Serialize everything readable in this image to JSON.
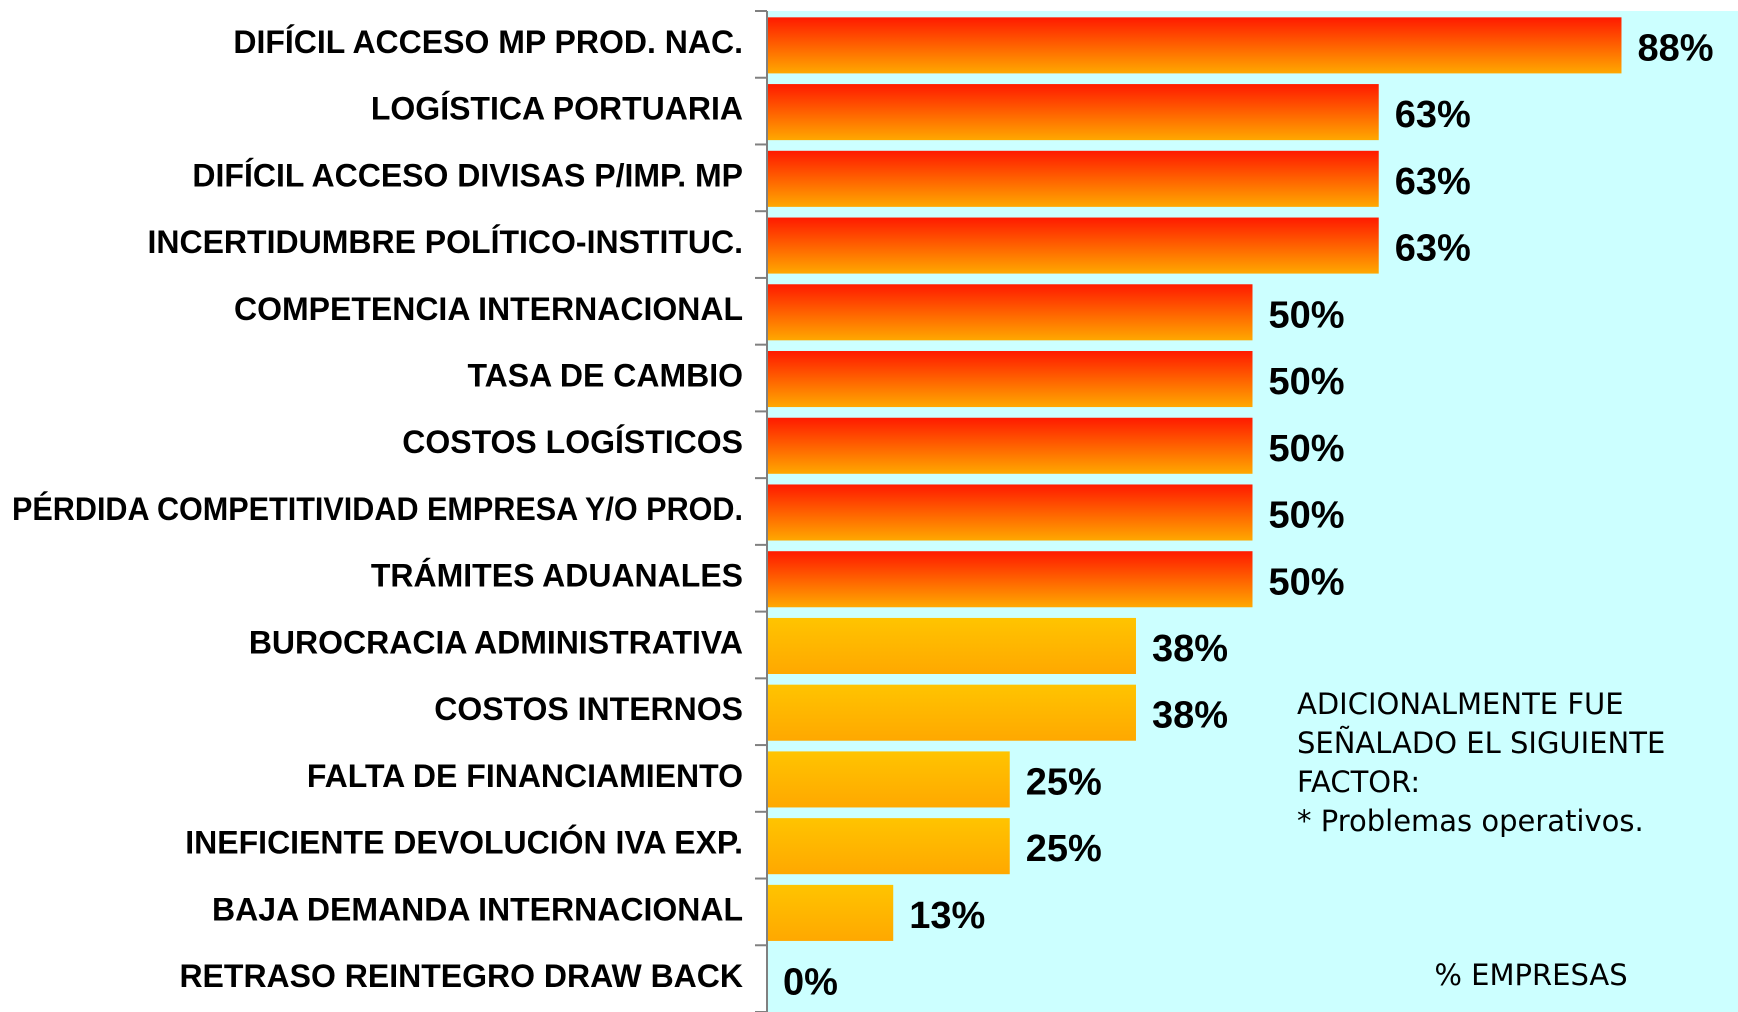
{
  "chart_data": {
    "type": "bar",
    "orientation": "horizontal",
    "categories": [
      "DIFÍCIL ACCESO MP PROD. NAC.",
      "LOGÍSTICA PORTUARIA",
      "DIFÍCIL ACCESO DIVISAS P/IMP. MP",
      "INCERTIDUMBRE POLÍTICO-INSTITUC.",
      "COMPETENCIA INTERNACIONAL",
      "TASA DE CAMBIO",
      "COSTOS LOGÍSTICOS",
      "PÉRDIDA COMPETITIVIDAD EMPRESA Y/O PROD.",
      "TRÁMITES ADUANALES",
      "BUROCRACIA ADMINISTRATIVA",
      "COSTOS INTERNOS",
      "FALTA DE FINANCIAMIENTO",
      "INEFICIENTE DEVOLUCIÓN IVA EXP.",
      "BAJA DEMANDA INTERNACIONAL",
      "RETRASO REINTEGRO DRAW BACK"
    ],
    "values": [
      88,
      63,
      63,
      63,
      50,
      50,
      50,
      50,
      50,
      38,
      38,
      25,
      25,
      13,
      0
    ],
    "value_labels": [
      "88%",
      "63%",
      "63%",
      "63%",
      "50%",
      "50%",
      "50%",
      "50%",
      "50%",
      "38%",
      "38%",
      "25%",
      "25%",
      "13%",
      "0%"
    ],
    "colors": [
      "#ff1a00",
      "#ff1a00",
      "#ff1a00",
      "#ff1a00",
      "#ff1a00",
      "#ff1a00",
      "#ff1a00",
      "#ff1a00",
      "#ff1a00",
      "#ffc400",
      "#ffc400",
      "#ffc400",
      "#ffc400",
      "#ffc400",
      "#ffc400"
    ],
    "plot_background": "#ccffff",
    "xlim": [
      0,
      100
    ],
    "annotation": [
      "ADICIONALMENTE  FUE",
      "SEÑALADO EL SIGUIENTE",
      "FACTOR:",
      "* Problemas operativos."
    ],
    "x_axis_label": "% EMPRESAS"
  }
}
